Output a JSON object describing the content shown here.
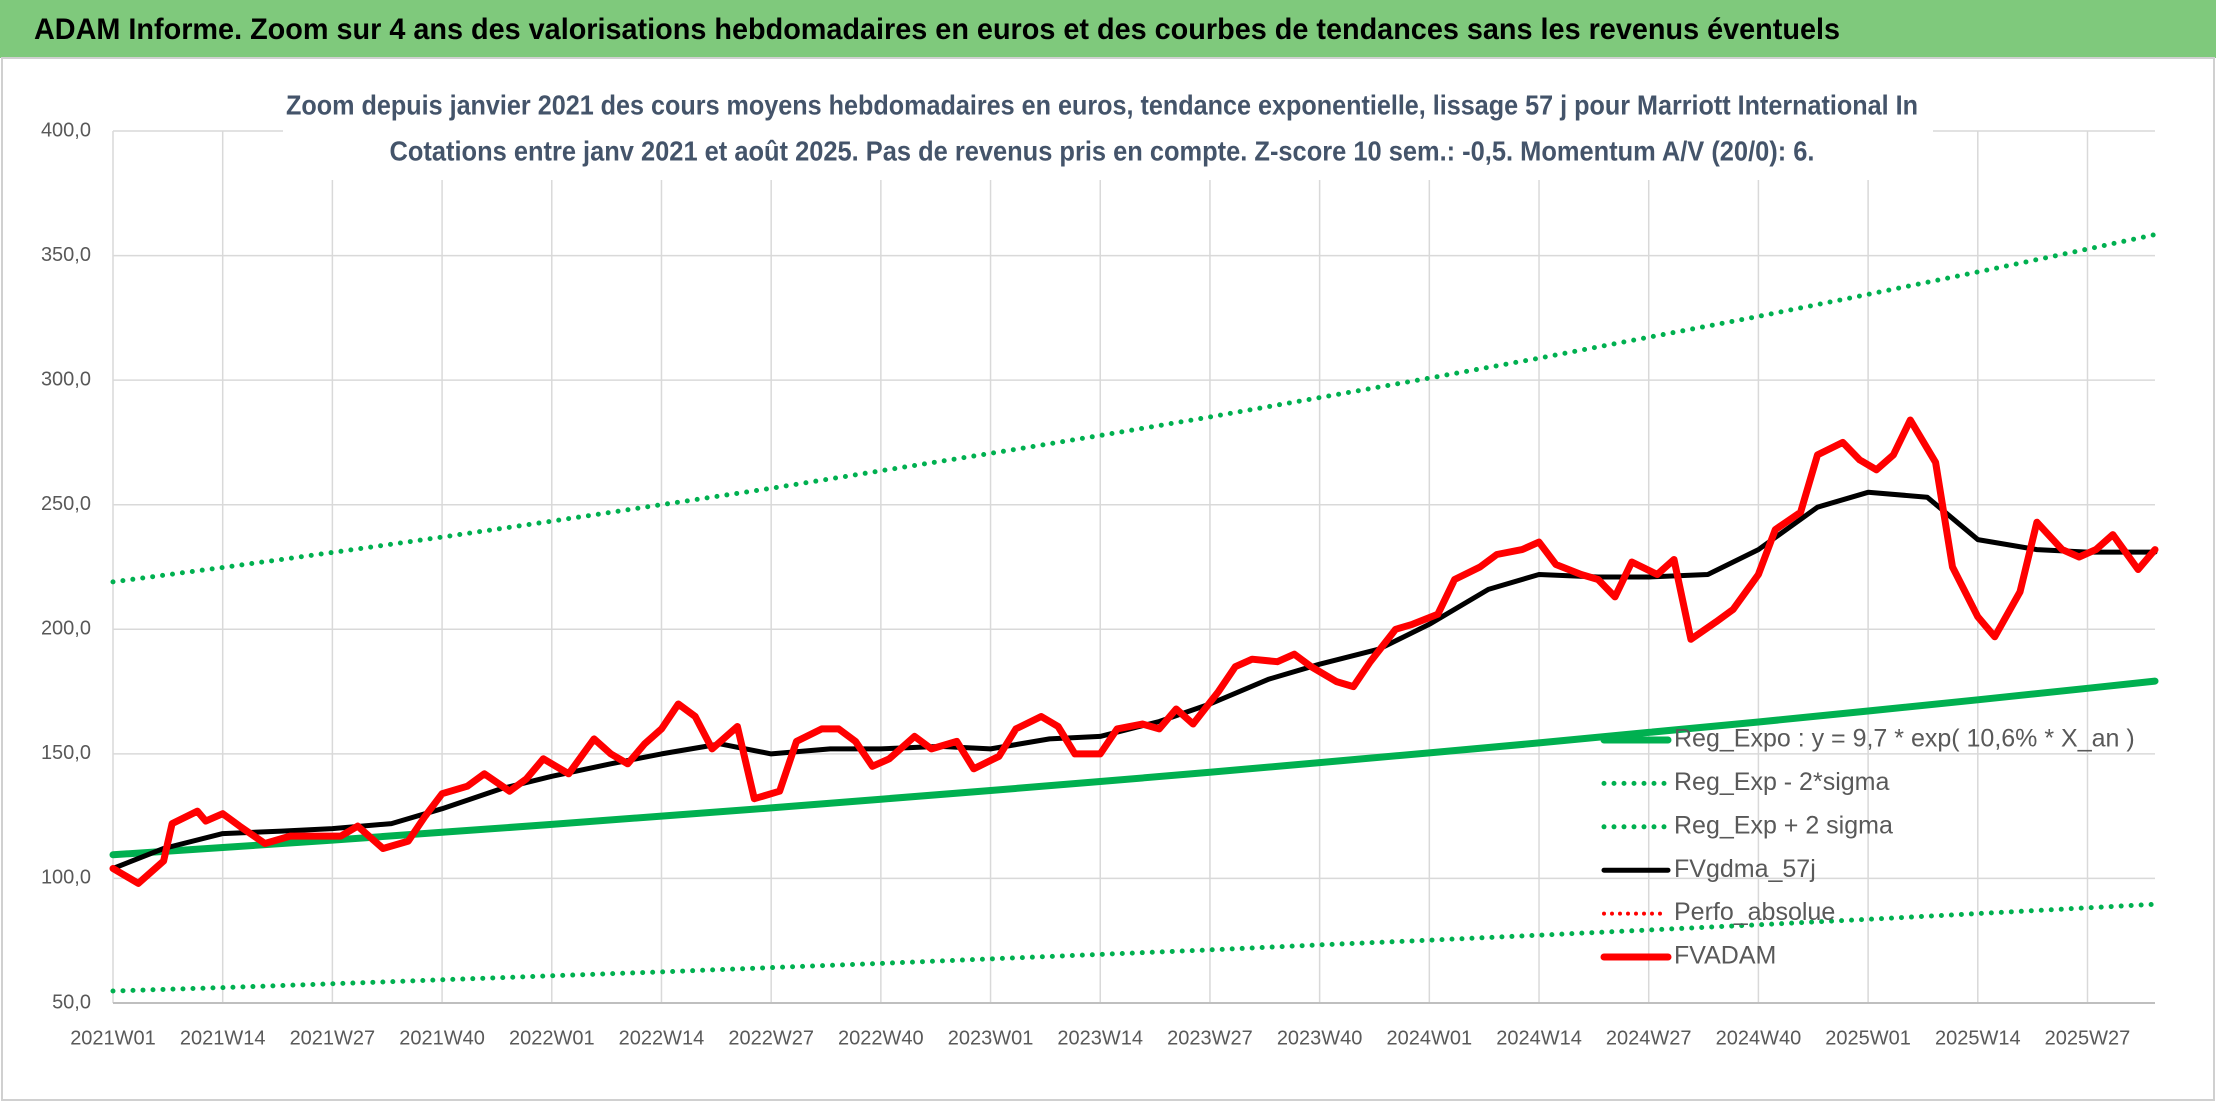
{
  "header": {
    "title": "ADAM Informe. Zoom sur 4 ans des valorisations hebdomadaires en euros et des courbes de tendances sans les revenus éventuels"
  },
  "chart_data": {
    "type": "line",
    "title": "Zoom depuis janvier 2021 des cours moyens hebdomadaires en euros, tendance exponentielle, lissage 57 j pour Marriott International In",
    "subtitle": "Cotations entre janv 2021 et août 2025. Pas de revenus pris en compte. Z-score 10 sem.: -0,5. Momentum A/V (20/0): 6.",
    "xlim": [
      0,
      242
    ],
    "xticks": [
      {
        "value": 0,
        "label": "2021W01"
      },
      {
        "value": 13,
        "label": "2021W14"
      },
      {
        "value": 26,
        "label": "2021W27"
      },
      {
        "value": 39,
        "label": "2021W40"
      },
      {
        "value": 52,
        "label": "2022W01"
      },
      {
        "value": 65,
        "label": "2022W14"
      },
      {
        "value": 78,
        "label": "2022W27"
      },
      {
        "value": 91,
        "label": "2022W40"
      },
      {
        "value": 104,
        "label": "2023W01"
      },
      {
        "value": 117,
        "label": "2023W14"
      },
      {
        "value": 130,
        "label": "2023W27"
      },
      {
        "value": 143,
        "label": "2023W40"
      },
      {
        "value": 156,
        "label": "2024W01"
      },
      {
        "value": 169,
        "label": "2024W14"
      },
      {
        "value": 182,
        "label": "2024W27"
      },
      {
        "value": 195,
        "label": "2024W40"
      },
      {
        "value": 208,
        "label": "2025W01"
      },
      {
        "value": 221,
        "label": "2025W14"
      },
      {
        "value": 234,
        "label": "2025W27"
      }
    ],
    "ylim": [
      50,
      400
    ],
    "yticks": [
      {
        "value": 50,
        "label": "50,0"
      },
      {
        "value": 100,
        "label": "100,0"
      },
      {
        "value": 150,
        "label": "150,0"
      },
      {
        "value": 200,
        "label": "200,0"
      },
      {
        "value": 250,
        "label": "250,0"
      },
      {
        "value": 300,
        "label": "300,0"
      },
      {
        "value": 350,
        "label": "350,0"
      },
      {
        "value": 400,
        "label": "400,0"
      }
    ],
    "grid": true,
    "legend": "right",
    "series": [
      {
        "name": "Reg_Expo : y = 9,7 * exp( 10,6% *  X_an )",
        "color": "#00b050",
        "style": "solid",
        "width": 7,
        "x": [
          0,
          13,
          26,
          39,
          52,
          65,
          78,
          91,
          104,
          117,
          130,
          143,
          156,
          169,
          182,
          195,
          208,
          221,
          234,
          242
        ],
        "values": [
          109.5,
          112.4,
          115.4,
          118.5,
          121.7,
          125.0,
          128.3,
          131.8,
          135.3,
          138.9,
          142.6,
          146.5,
          150.4,
          154.4,
          158.6,
          162.8,
          167.2,
          171.7,
          176.3,
          179.2
        ]
      },
      {
        "name": "Reg_Exp - 2*sigma",
        "color": "#00b050",
        "style": "dotted",
        "width": 5,
        "x": [
          0,
          13,
          26,
          39,
          52,
          65,
          78,
          91,
          104,
          117,
          130,
          143,
          156,
          169,
          182,
          195,
          208,
          221,
          234,
          242
        ],
        "values": [
          54.8,
          56.2,
          57.7,
          59.3,
          60.9,
          62.5,
          64.2,
          65.9,
          67.7,
          69.5,
          71.3,
          73.3,
          75.2,
          77.2,
          79.3,
          81.4,
          83.6,
          85.9,
          88.2,
          89.6
        ]
      },
      {
        "name": "Reg_Exp + 2 sigma",
        "color": "#00b050",
        "style": "dotted",
        "width": 5,
        "x": [
          0,
          13,
          26,
          39,
          52,
          65,
          78,
          91,
          104,
          117,
          130,
          143,
          156,
          169,
          182,
          195,
          208,
          221,
          234,
          242
        ],
        "values": [
          219.0,
          224.8,
          230.8,
          237.0,
          243.4,
          250.0,
          256.6,
          263.6,
          270.6,
          277.8,
          285.2,
          293.0,
          300.8,
          308.8,
          317.2,
          325.6,
          334.4,
          343.4,
          352.6,
          358.4
        ]
      },
      {
        "name": "FVgdma_57j",
        "color": "#000000",
        "style": "solid",
        "width": 5,
        "x": [
          0,
          6,
          13,
          20,
          26,
          33,
          39,
          46,
          52,
          59,
          65,
          72,
          78,
          85,
          91,
          98,
          104,
          111,
          117,
          124,
          130,
          137,
          143,
          150,
          156,
          163,
          169,
          176,
          182,
          189,
          195,
          202,
          208,
          215,
          221,
          228,
          234,
          242
        ],
        "values": [
          104,
          112,
          118,
          119,
          120,
          122,
          128,
          136,
          141,
          146,
          150,
          154,
          150,
          152,
          152,
          153,
          152,
          156,
          157,
          163,
          170,
          180,
          186,
          192,
          202,
          216,
          222,
          221,
          221,
          222,
          232,
          249,
          255,
          253,
          236,
          232,
          231,
          231
        ]
      },
      {
        "name": "Perfo_absolue",
        "color": "#ff0000",
        "style": "dotted",
        "width": 4,
        "x": [],
        "values": []
      },
      {
        "name": "FVADAM",
        "color": "#ff0000",
        "style": "solid",
        "width": 7,
        "x": [
          0,
          3,
          6,
          7,
          10,
          11,
          13,
          15,
          18,
          21,
          24,
          27,
          29,
          32,
          35,
          37,
          39,
          42,
          44,
          47,
          49,
          51,
          54,
          57,
          59,
          61,
          63,
          65,
          67,
          69,
          71,
          74,
          76,
          79,
          81,
          84,
          86,
          88,
          90,
          92,
          95,
          97,
          100,
          102,
          105,
          107,
          110,
          112,
          114,
          117,
          119,
          122,
          124,
          126,
          128,
          131,
          133,
          135,
          138,
          140,
          142,
          145,
          147,
          149,
          152,
          154,
          157,
          159,
          162,
          164,
          167,
          169,
          171,
          174,
          176,
          178,
          180,
          183,
          185,
          187,
          190,
          192,
          195,
          197,
          200,
          202,
          205,
          207,
          209,
          211,
          213,
          216,
          218,
          221,
          223,
          226,
          228,
          231,
          233,
          235,
          237,
          240,
          242
        ],
        "values": [
          104,
          98,
          107,
          122,
          127,
          123,
          126,
          121,
          114,
          117,
          117,
          117,
          121,
          112,
          115,
          125,
          134,
          137,
          142,
          135,
          140,
          148,
          142,
          156,
          150,
          146,
          154,
          160,
          170,
          165,
          152,
          161,
          132,
          135,
          155,
          160,
          160,
          155,
          145,
          148,
          157,
          152,
          155,
          144,
          149,
          160,
          165,
          161,
          150,
          150,
          160,
          162,
          160,
          168,
          162,
          175,
          185,
          188,
          187,
          190,
          185,
          179,
          177,
          187,
          200,
          202,
          206,
          220,
          225,
          230,
          232,
          235,
          226,
          222,
          220,
          213,
          227,
          222,
          228,
          196,
          203,
          208,
          222,
          240,
          247,
          270,
          275,
          268,
          264,
          270,
          284,
          267,
          225,
          205,
          197,
          215,
          243,
          232,
          229,
          232,
          238,
          224,
          232
        ]
      }
    ]
  }
}
